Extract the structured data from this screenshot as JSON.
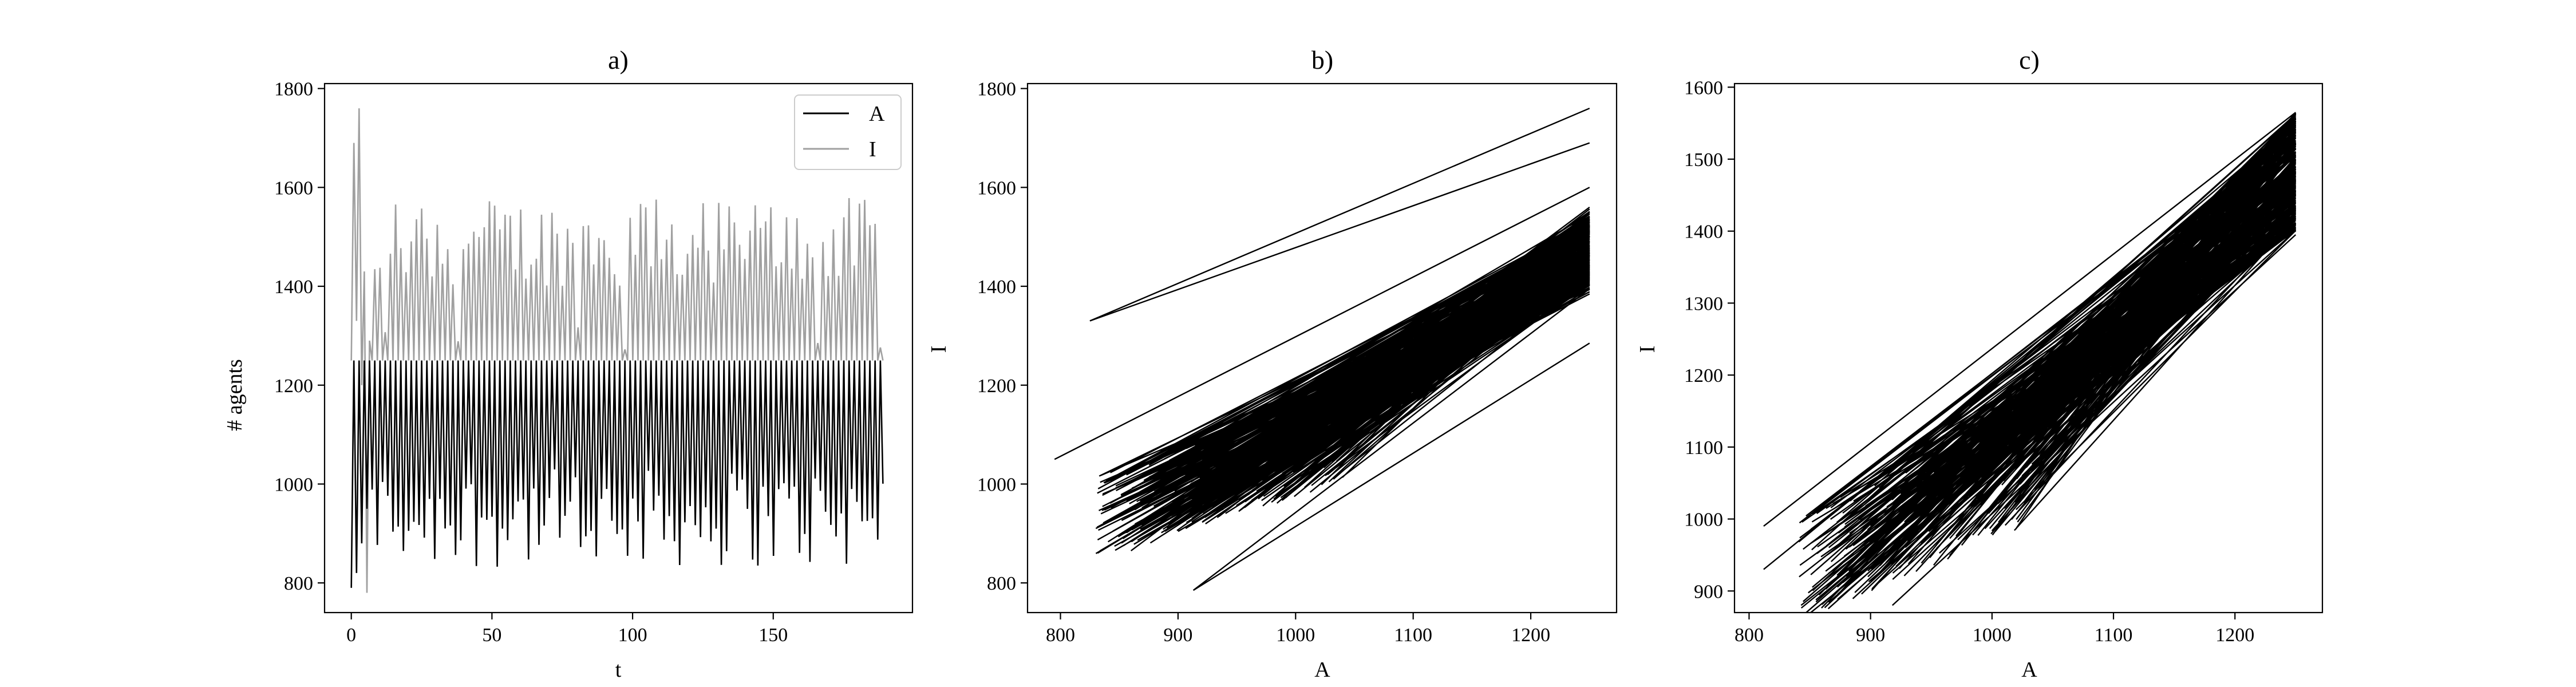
{
  "chart_data": [
    {
      "type": "line",
      "title": "a)",
      "xlabel": "t",
      "ylabel": "# agents",
      "xlim": [
        -9.5,
        199.5
      ],
      "ylim": [
        740,
        1810
      ],
      "xticks": [
        0,
        50,
        100,
        150
      ],
      "yticks": [
        800,
        1000,
        1200,
        1400,
        1600,
        1800
      ],
      "legend": {
        "placement": "top-right",
        "entries": [
          "A",
          "I"
        ]
      },
      "grid": false,
      "series": [
        {
          "name": "A",
          "color": "#000000",
          "style": "oscillating time series t=0..189, ~0.93 period, A ranges ~810-1250"
        },
        {
          "name": "I",
          "color": "#a0a0a0",
          "style": "oscillating time series t=0..189, I ranges ~780-1760"
        }
      ],
      "sample": [
        {
          "t": 0,
          "A": 790,
          "I": 1250
        },
        {
          "t": 1,
          "A": 1250,
          "I": 1690
        },
        {
          "t": 2,
          "A": 820,
          "I": 1330
        },
        {
          "t": 3,
          "A": 1250,
          "I": 1760
        },
        {
          "t": 4,
          "A": 880,
          "I": 1200
        },
        {
          "t": 6,
          "A": 950,
          "I": 780
        },
        {
          "t": 10,
          "A": 1250,
          "I": 1600
        },
        {
          "t": 100,
          "A": 830,
          "I": 1530
        },
        {
          "t": 160,
          "A": 810,
          "I": 1570
        },
        {
          "t": 189,
          "A": 1230,
          "I": 1460
        }
      ]
    },
    {
      "type": "line",
      "title": "b)",
      "xlabel": "A",
      "ylabel": "I",
      "xlim": [
        772,
        1273
      ],
      "ylim": [
        740,
        1810
      ],
      "xticks": [
        800,
        900,
        1000,
        1100,
        1200
      ],
      "yticks": [
        800,
        1000,
        1200,
        1400,
        1600,
        1800
      ],
      "grid": false,
      "color": "#000000",
      "segments_sample": [
        [
          [
            825,
            1330
          ],
          [
            1250,
            1760
          ]
        ],
        [
          [
            825,
            1330
          ],
          [
            1250,
            1690
          ]
        ],
        [
          [
            795,
            1050
          ],
          [
            1250,
            1600
          ]
        ],
        [
          [
            913,
            785
          ],
          [
            1250,
            1285
          ]
        ],
        [
          [
            913,
            785
          ],
          [
            1250,
            1395
          ]
        ],
        [
          [
            860,
            865
          ],
          [
            1250,
            1560
          ]
        ]
      ]
    },
    {
      "type": "line",
      "title": "c)",
      "xlabel": "A",
      "ylabel": "I",
      "xlim": [
        788,
        1272
      ],
      "ylim": [
        870,
        1605
      ],
      "xticks": [
        800,
        900,
        1000,
        1100,
        1200
      ],
      "yticks": [
        900,
        1000,
        1100,
        1200,
        1300,
        1400,
        1500,
        1600
      ],
      "grid": false,
      "color": "#000000",
      "segments_sample": [
        [
          [
            812,
            990
          ],
          [
            1250,
            1565
          ]
        ],
        [
          [
            812,
            930
          ],
          [
            1250,
            1530
          ]
        ],
        [
          [
            918,
            880
          ],
          [
            1250,
            1395
          ]
        ],
        [
          [
            880,
            920
          ],
          [
            1250,
            1450
          ]
        ]
      ]
    }
  ]
}
